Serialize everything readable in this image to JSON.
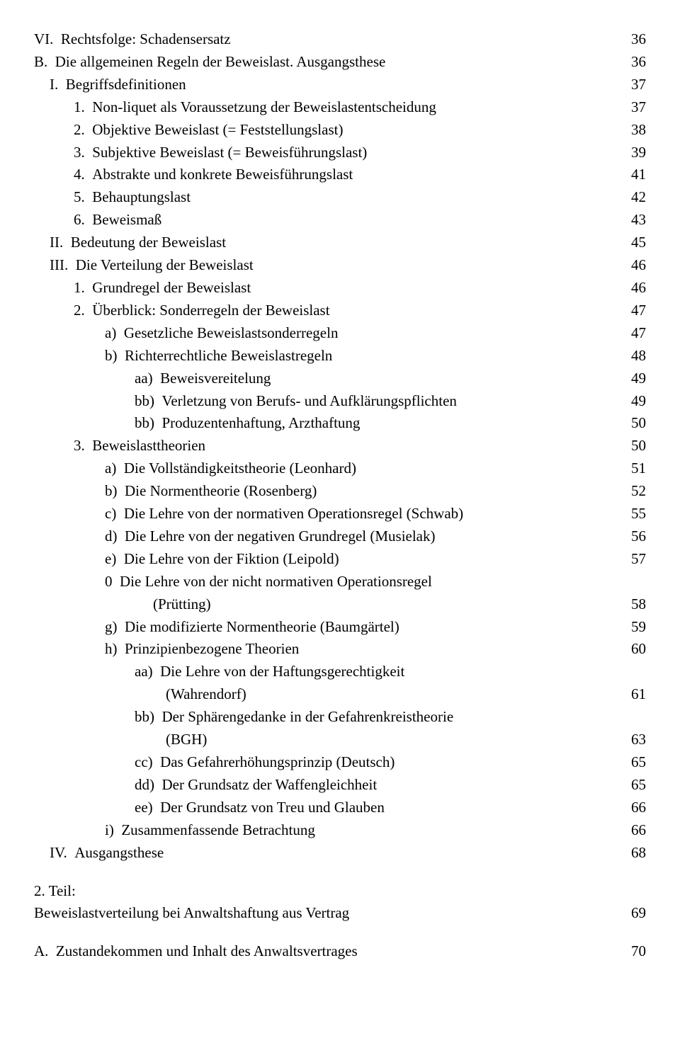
{
  "toc": {
    "r1": {
      "m": "VI.  ",
      "t": "Rechtsfolge: Schadensersatz",
      "p": "36"
    },
    "r2": {
      "m": "B.  ",
      "t": "Die allgemeinen Regeln der Beweislast. Ausgangsthese",
      "p": "36"
    },
    "r3": {
      "m": "I.  ",
      "t": "Begriffsdefinitionen",
      "p": "37"
    },
    "r4": {
      "m": "1.  ",
      "t": "Non-liquet als Voraussetzung der Beweislastentscheidung",
      "p": "37"
    },
    "r5": {
      "m": "2.  ",
      "t": "Objektive Beweislast (= Feststellungslast)",
      "p": "38"
    },
    "r6": {
      "m": "3.  ",
      "t": "Subjektive Beweislast (= Beweisführungslast)",
      "p": "39"
    },
    "r7": {
      "m": "4.  ",
      "t": "Abstrakte und konkrete Beweisführungslast",
      "p": "41"
    },
    "r8": {
      "m": "5.  ",
      "t": "Behauptungslast",
      "p": "42"
    },
    "r9": {
      "m": "6.  ",
      "t": "Beweismaß",
      "p": "43"
    },
    "r10": {
      "m": "II.  ",
      "t": "Bedeutung der Beweislast",
      "p": "45"
    },
    "r11": {
      "m": "III.  ",
      "t": "Die Verteilung der Beweislast",
      "p": "46"
    },
    "r12": {
      "m": "1.  ",
      "t": "Grundregel der Beweislast",
      "p": "46"
    },
    "r13": {
      "m": "2.  ",
      "t": "Überblick: Sonderregeln der Beweislast",
      "p": "47"
    },
    "r14": {
      "m": "a)  ",
      "t": "Gesetzliche Beweislastsonderregeln",
      "p": "47"
    },
    "r15": {
      "m": "b)  ",
      "t": "Richterrechtliche Beweislastregeln",
      "p": "48"
    },
    "r16": {
      "m": "aa)  ",
      "t": "Beweisvereitelung",
      "p": "49"
    },
    "r17": {
      "m": "bb)  ",
      "t": "Verletzung von Berufs- und Aufklärungspflichten",
      "p": "49"
    },
    "r18": {
      "m": "bb)  ",
      "t": "Produzentenhaftung, Arzthaftung",
      "p": "50"
    },
    "r19": {
      "m": "3.  ",
      "t": "Beweislasttheorien",
      "p": "50"
    },
    "r20": {
      "m": "a)  ",
      "t": "Die Vollständigkeitstheorie (Leonhard)",
      "p": "51"
    },
    "r21": {
      "m": "b)  ",
      "t": "Die Normentheorie (Rosenberg)",
      "p": "52"
    },
    "r22": {
      "m": "c)  ",
      "t": "Die Lehre von der normativen Operationsregel (Schwab)",
      "p": "55"
    },
    "r23": {
      "m": "d)  ",
      "t": "Die Lehre von der negativen Grundregel (Musielak)",
      "p": "56"
    },
    "r24": {
      "m": "e)  ",
      "t": "Die Lehre von der Fiktion (Leipold)",
      "p": "57"
    },
    "r25": {
      "m": "0  ",
      "t": "Die Lehre von der nicht normativen Operationsregel",
      "p": ""
    },
    "r25b": {
      "m": "",
      "t": "(Prütting)",
      "p": "58"
    },
    "r26": {
      "m": "g)  ",
      "t": "Die modifizierte Normentheorie (Baumgärtel)",
      "p": "59"
    },
    "r27": {
      "m": "h)  ",
      "t": "Prinzipienbezogene Theorien",
      "p": "60"
    },
    "r28": {
      "m": "aa)  ",
      "t": "Die Lehre von der Haftungsgerechtigkeit",
      "p": ""
    },
    "r28b": {
      "m": "",
      "t": "(Wahrendorf)",
      "p": "61"
    },
    "r29": {
      "m": "bb)  ",
      "t": "Der Sphärengedanke in der Gefahrenkreistheorie",
      "p": ""
    },
    "r29b": {
      "m": "",
      "t": "(BGH)",
      "p": "63"
    },
    "r30": {
      "m": "cc)  ",
      "t": "Das Gefahrerhöhungsprinzip (Deutsch)",
      "p": "65"
    },
    "r31": {
      "m": "dd)  ",
      "t": "Der Grundsatz der Waffengleichheit",
      "p": "65"
    },
    "r32": {
      "m": "ee)  ",
      "t": "Der Grundsatz von Treu und Glauben",
      "p": "66"
    },
    "r33": {
      "m": "i)  ",
      "t": "Zusammenfassende Betrachtung",
      "p": "66"
    },
    "r34": {
      "m": "IV.  ",
      "t": "Ausgangsthese",
      "p": "68"
    },
    "part2_a": "2. Teil:",
    "part2_b": {
      "t": "Beweislastverteilung bei Anwaltshaftung aus Vertrag",
      "p": "69"
    },
    "r35": {
      "m": "A.  ",
      "t": "Zustandekommen und Inhalt des Anwaltsvertrages",
      "p": "70"
    }
  }
}
